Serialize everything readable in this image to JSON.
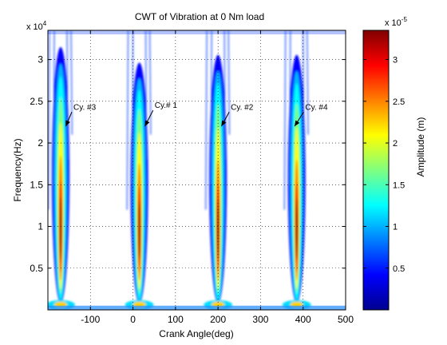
{
  "chart_data": {
    "type": "heatmap",
    "title": "CWT of Vibration at 0 Nm load",
    "xlabel": "Crank Angle(deg)",
    "ylabel": "Frequency(Hz)",
    "xlim": [
      -200,
      500
    ],
    "ylim": [
      0,
      3.35
    ],
    "y_exponent_label": "x 10",
    "y_exponent_power": "4",
    "xticks": [
      -100,
      0,
      100,
      200,
      300,
      400,
      500
    ],
    "yticks": [
      0.5,
      1,
      1.5,
      2,
      2.5,
      3
    ],
    "grid": true,
    "colorbar": {
      "label": "Amplitude (m)",
      "exponent_label": "x 10",
      "exponent_power": "-5",
      "range": [
        0,
        3.35
      ],
      "ticks": [
        0.5,
        1,
        1.5,
        2,
        2.5,
        3
      ],
      "colormap": "jet"
    },
    "cycles": [
      {
        "center": -170,
        "label": "Cy. #3",
        "peak": 3.3
      },
      {
        "center": 15,
        "label": "Cy.# 1",
        "peak": 3.1
      },
      {
        "center": 200,
        "label": "Cy. #2",
        "peak": 3.2
      },
      {
        "center": 385,
        "label": "Cy. #4",
        "peak": 3.2
      }
    ],
    "annotations": [
      {
        "text": "Cy. #3",
        "text_x": -140,
        "text_y": 2.4,
        "arrow_x": -158,
        "arrow_y": 2.2
      },
      {
        "text": "Cy.# 1",
        "text_x": 51,
        "text_y": 2.42,
        "arrow_x": 28,
        "arrow_y": 2.2
      },
      {
        "text": "Cy. #2",
        "text_x": 230,
        "text_y": 2.4,
        "arrow_x": 208,
        "arrow_y": 2.2
      },
      {
        "text": "Cy. #4",
        "text_x": 405,
        "text_y": 2.4,
        "arrow_x": 380,
        "arrow_y": 2.2
      }
    ]
  }
}
